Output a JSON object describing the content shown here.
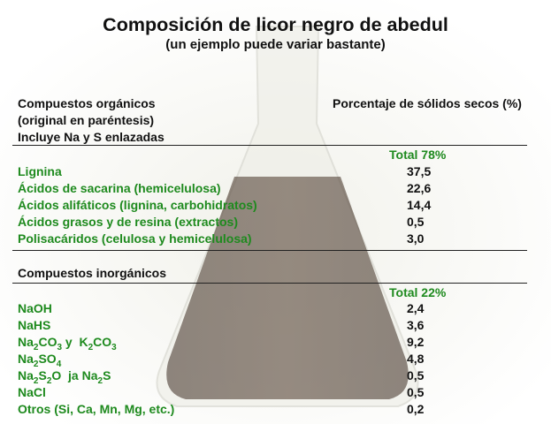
{
  "title": "Composición de licor negro de abedul",
  "subtitle": "(un ejemplo puede variar bastante)",
  "organic": {
    "header_lines": [
      "Compuestos orgánicos",
      "(original en paréntesis)",
      "Incluye Na y S enlazadas"
    ],
    "value_header": "Porcentaje de sólidos secos (%)",
    "total": "Total 78%",
    "rows": [
      {
        "name": "Lignina",
        "value": "37,5"
      },
      {
        "name": "Ácidos de sacarina (hemicelulosa)",
        "value": "22,6"
      },
      {
        "name": "Ácidos alifáticos (lignina, carbohidratos)",
        "value": "14,4"
      },
      {
        "name": "Ácidos grasos y de resina (extractos)",
        "value": "0,5"
      },
      {
        "name": "Polisacáridos (celulosa y hemicelulosa)",
        "value": "3,0"
      }
    ]
  },
  "inorganic": {
    "header": "Compuestos inorgánicos",
    "total": "Total 22%",
    "rows": [
      {
        "name": "NaOH",
        "value": "2,4"
      },
      {
        "name": "NaHS",
        "value": "3,6"
      },
      {
        "name": "Na2CO3 y K2CO3",
        "value": "9,2",
        "parts": [
          "Na",
          "2",
          "CO",
          "3",
          " y  K",
          "2",
          "CO",
          "3"
        ]
      },
      {
        "name": "Na2SO4",
        "value": "4,8",
        "parts": [
          "Na",
          "2",
          "SO",
          "4"
        ]
      },
      {
        "name": "Na2S2O ja Na2S",
        "value": "0,5",
        "parts": [
          "Na",
          "2",
          "S",
          "2",
          "O  ja Na",
          "2",
          "S"
        ]
      },
      {
        "name": "NaCl",
        "value": "0,5"
      },
      {
        "name": "Otros (Si, Ca, Mn, Mg, etc.)",
        "value": "0,2"
      }
    ]
  },
  "colors": {
    "green": "#1e8a1e",
    "liquor": "#2a1a10"
  }
}
